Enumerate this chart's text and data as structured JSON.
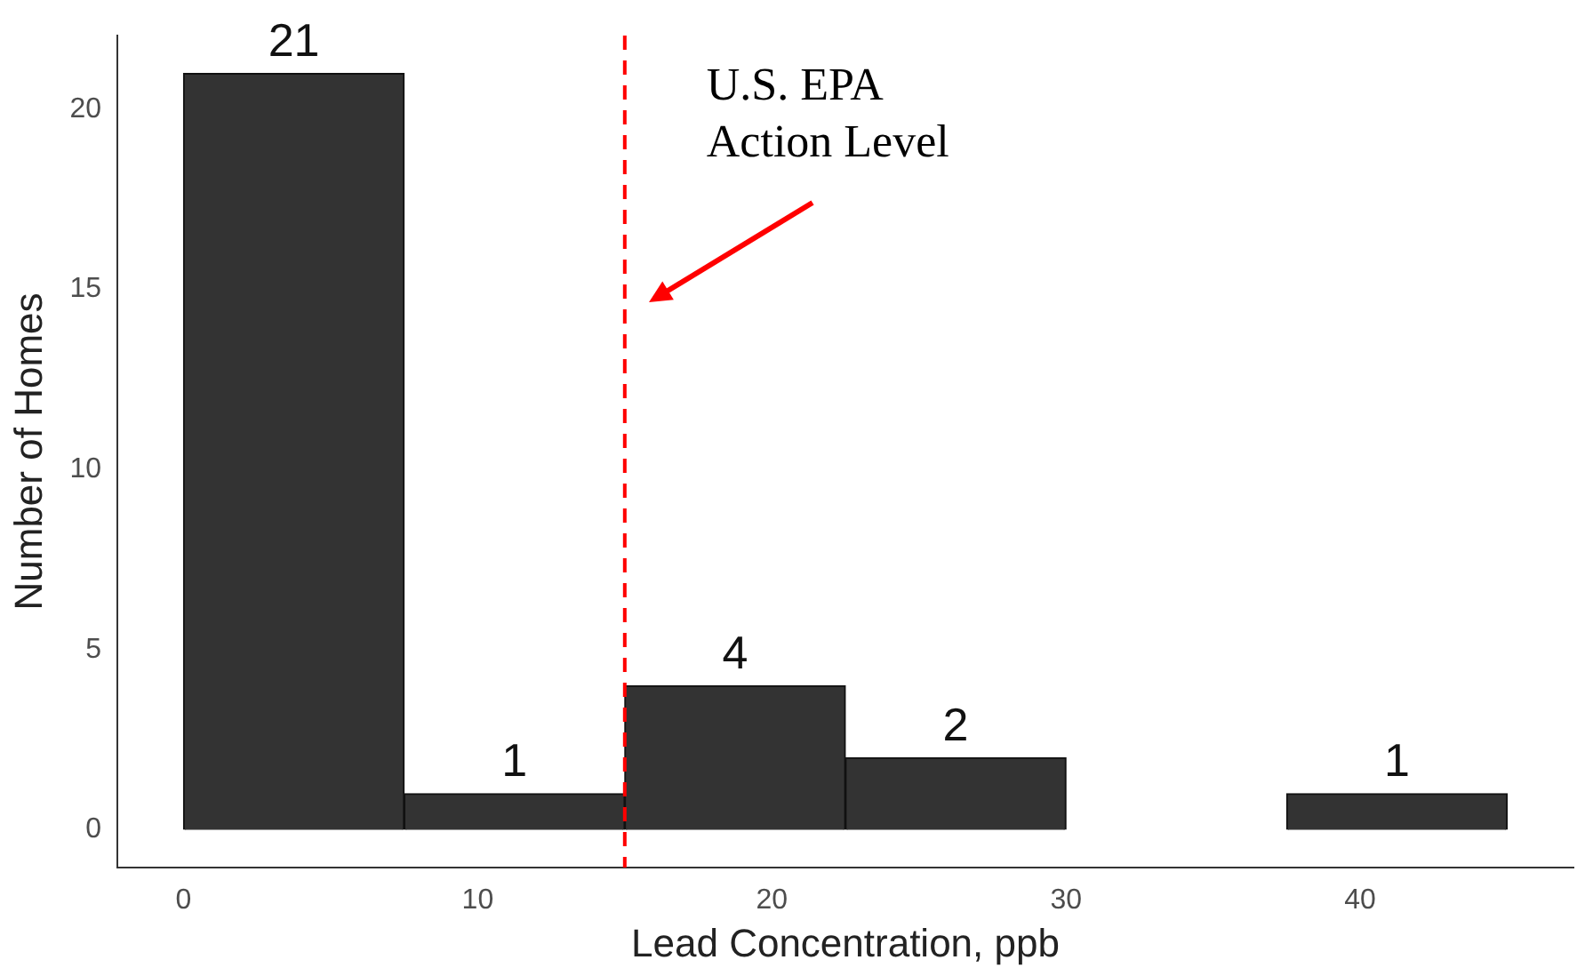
{
  "chart_data": {
    "type": "histogram",
    "xlabel": "Lead Concentration, ppb",
    "ylabel": "Number of Homes",
    "bins": [
      0,
      7.5,
      15,
      22.5,
      30,
      37.5,
      45
    ],
    "values": [
      21,
      1,
      4,
      2,
      0,
      1
    ],
    "value_labels": [
      "21",
      "1",
      "4",
      "2",
      null,
      "1"
    ],
    "color": "#333333",
    "xlim": [
      -2.25,
      47.25
    ],
    "xticks": [
      0,
      10,
      20,
      30,
      40
    ],
    "ylim": [
      -1.05,
      22.05
    ],
    "yticks": [
      0,
      5,
      10,
      15,
      20
    ],
    "grid": false,
    "legend": false,
    "ref_lines": [
      {
        "axis": "x",
        "value": 15,
        "label": "U.S. EPA Action Level",
        "color": "#ff0000",
        "line_style": "dashed"
      }
    ]
  }
}
